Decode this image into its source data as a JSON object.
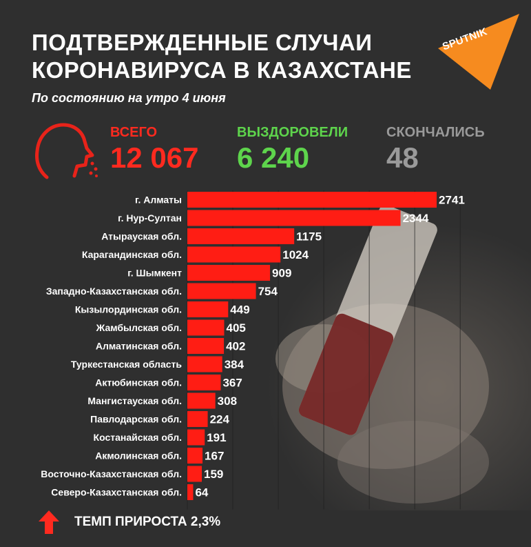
{
  "header": {
    "title_line1": "ПОДТВЕРЖДЕННЫЕ СЛУЧАИ",
    "title_line2": "КОРОНАВИРУСА В КАЗАХСТАНЕ",
    "subtitle": "По состоянию на утро 4 июня",
    "logo_text": "SPUTNIK"
  },
  "stats": {
    "total": {
      "label": "ВСЕГО",
      "value": "12 067",
      "color": "#ff2a1f"
    },
    "recovered": {
      "label": "ВЫЗДОРОВЕЛИ",
      "value": "6 240",
      "color": "#5ed44c"
    },
    "died": {
      "label": "СКОНЧАЛИСЬ",
      "value": "48",
      "color": "#9a9a9a"
    }
  },
  "icons": {
    "head": "head-coughing-icon",
    "logo": "sputnik-logo-icon",
    "growth": "up-arrow-icon"
  },
  "footer": {
    "text": "ТЕМП ПРИРОСТА 2,3%"
  },
  "colors": {
    "bar": "#ff1d14",
    "accent": "#ff2a1f",
    "logo": "#f68b1f"
  },
  "chart_data": {
    "type": "bar",
    "orientation": "horizontal",
    "categories": [
      "г. Алматы",
      "г. Нур-Султан",
      "Атырауская обл.",
      "Карагандинская обл.",
      "г. Шымкент",
      "Западно-Казахстанская обл.",
      "Кызылординская обл.",
      "Жамбылская обл.",
      "Алматинская обл.",
      "Туркестанская область",
      "Актюбинская обл.",
      "Мангистауская обл.",
      "Павлодарская обл.",
      "Костанайская обл.",
      "Акмолинская обл.",
      "Восточно-Казахстанская обл.",
      "Северо-Казахстанская обл."
    ],
    "values": [
      2741,
      2344,
      1175,
      1024,
      909,
      754,
      449,
      405,
      402,
      384,
      367,
      308,
      224,
      191,
      167,
      159,
      64
    ],
    "xlim": [
      0,
      3000
    ],
    "grid": true,
    "legend": "none"
  }
}
